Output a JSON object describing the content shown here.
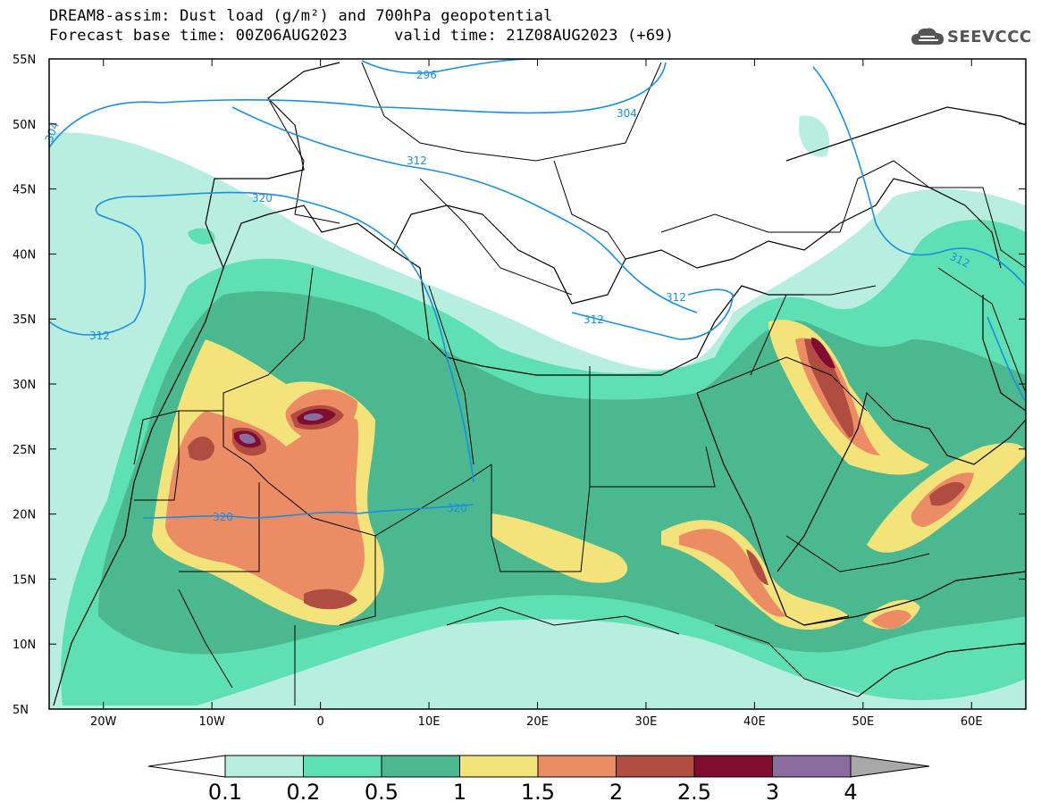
{
  "title": {
    "line1": "DREAM8-assim: Dust load (g/m²) and 700hPa geopotential",
    "line2": "Forecast base time: 00Z06AUG2023     valid time: 21Z08AUG2023 (+69)"
  },
  "logo": {
    "icon": "cloud-logo-icon",
    "text": "SEEVCCC"
  },
  "map": {
    "lat_labels": [
      "55N",
      "50N",
      "45N",
      "40N",
      "35N",
      "30N",
      "25N",
      "20N",
      "15N",
      "10N",
      "5N"
    ],
    "lon_labels": [
      "20W",
      "10W",
      "0",
      "10E",
      "20E",
      "30E",
      "40E",
      "50E",
      "60E"
    ],
    "lat_range": [
      5,
      55
    ],
    "lon_range": [
      -25,
      65
    ],
    "contour_labels": [
      "296",
      "304",
      "304",
      "312",
      "320",
      "312",
      "320",
      "320",
      "312",
      "312",
      "312"
    ]
  },
  "colorbar": {
    "labels": [
      "0.1",
      "0.2",
      "0.5",
      "1",
      "1.5",
      "2",
      "2.5",
      "3",
      "4"
    ],
    "colors": [
      "#b8eee0",
      "#5ee0b4",
      "#4cb890",
      "#f4e27a",
      "#ec8c64",
      "#b04c40",
      "#800c30",
      "#8c6ca0",
      "#a8a8a8"
    ]
  },
  "colors": {
    "contour": "#1a8fe0",
    "border": "#000000",
    "ocean": "#ffffff"
  }
}
